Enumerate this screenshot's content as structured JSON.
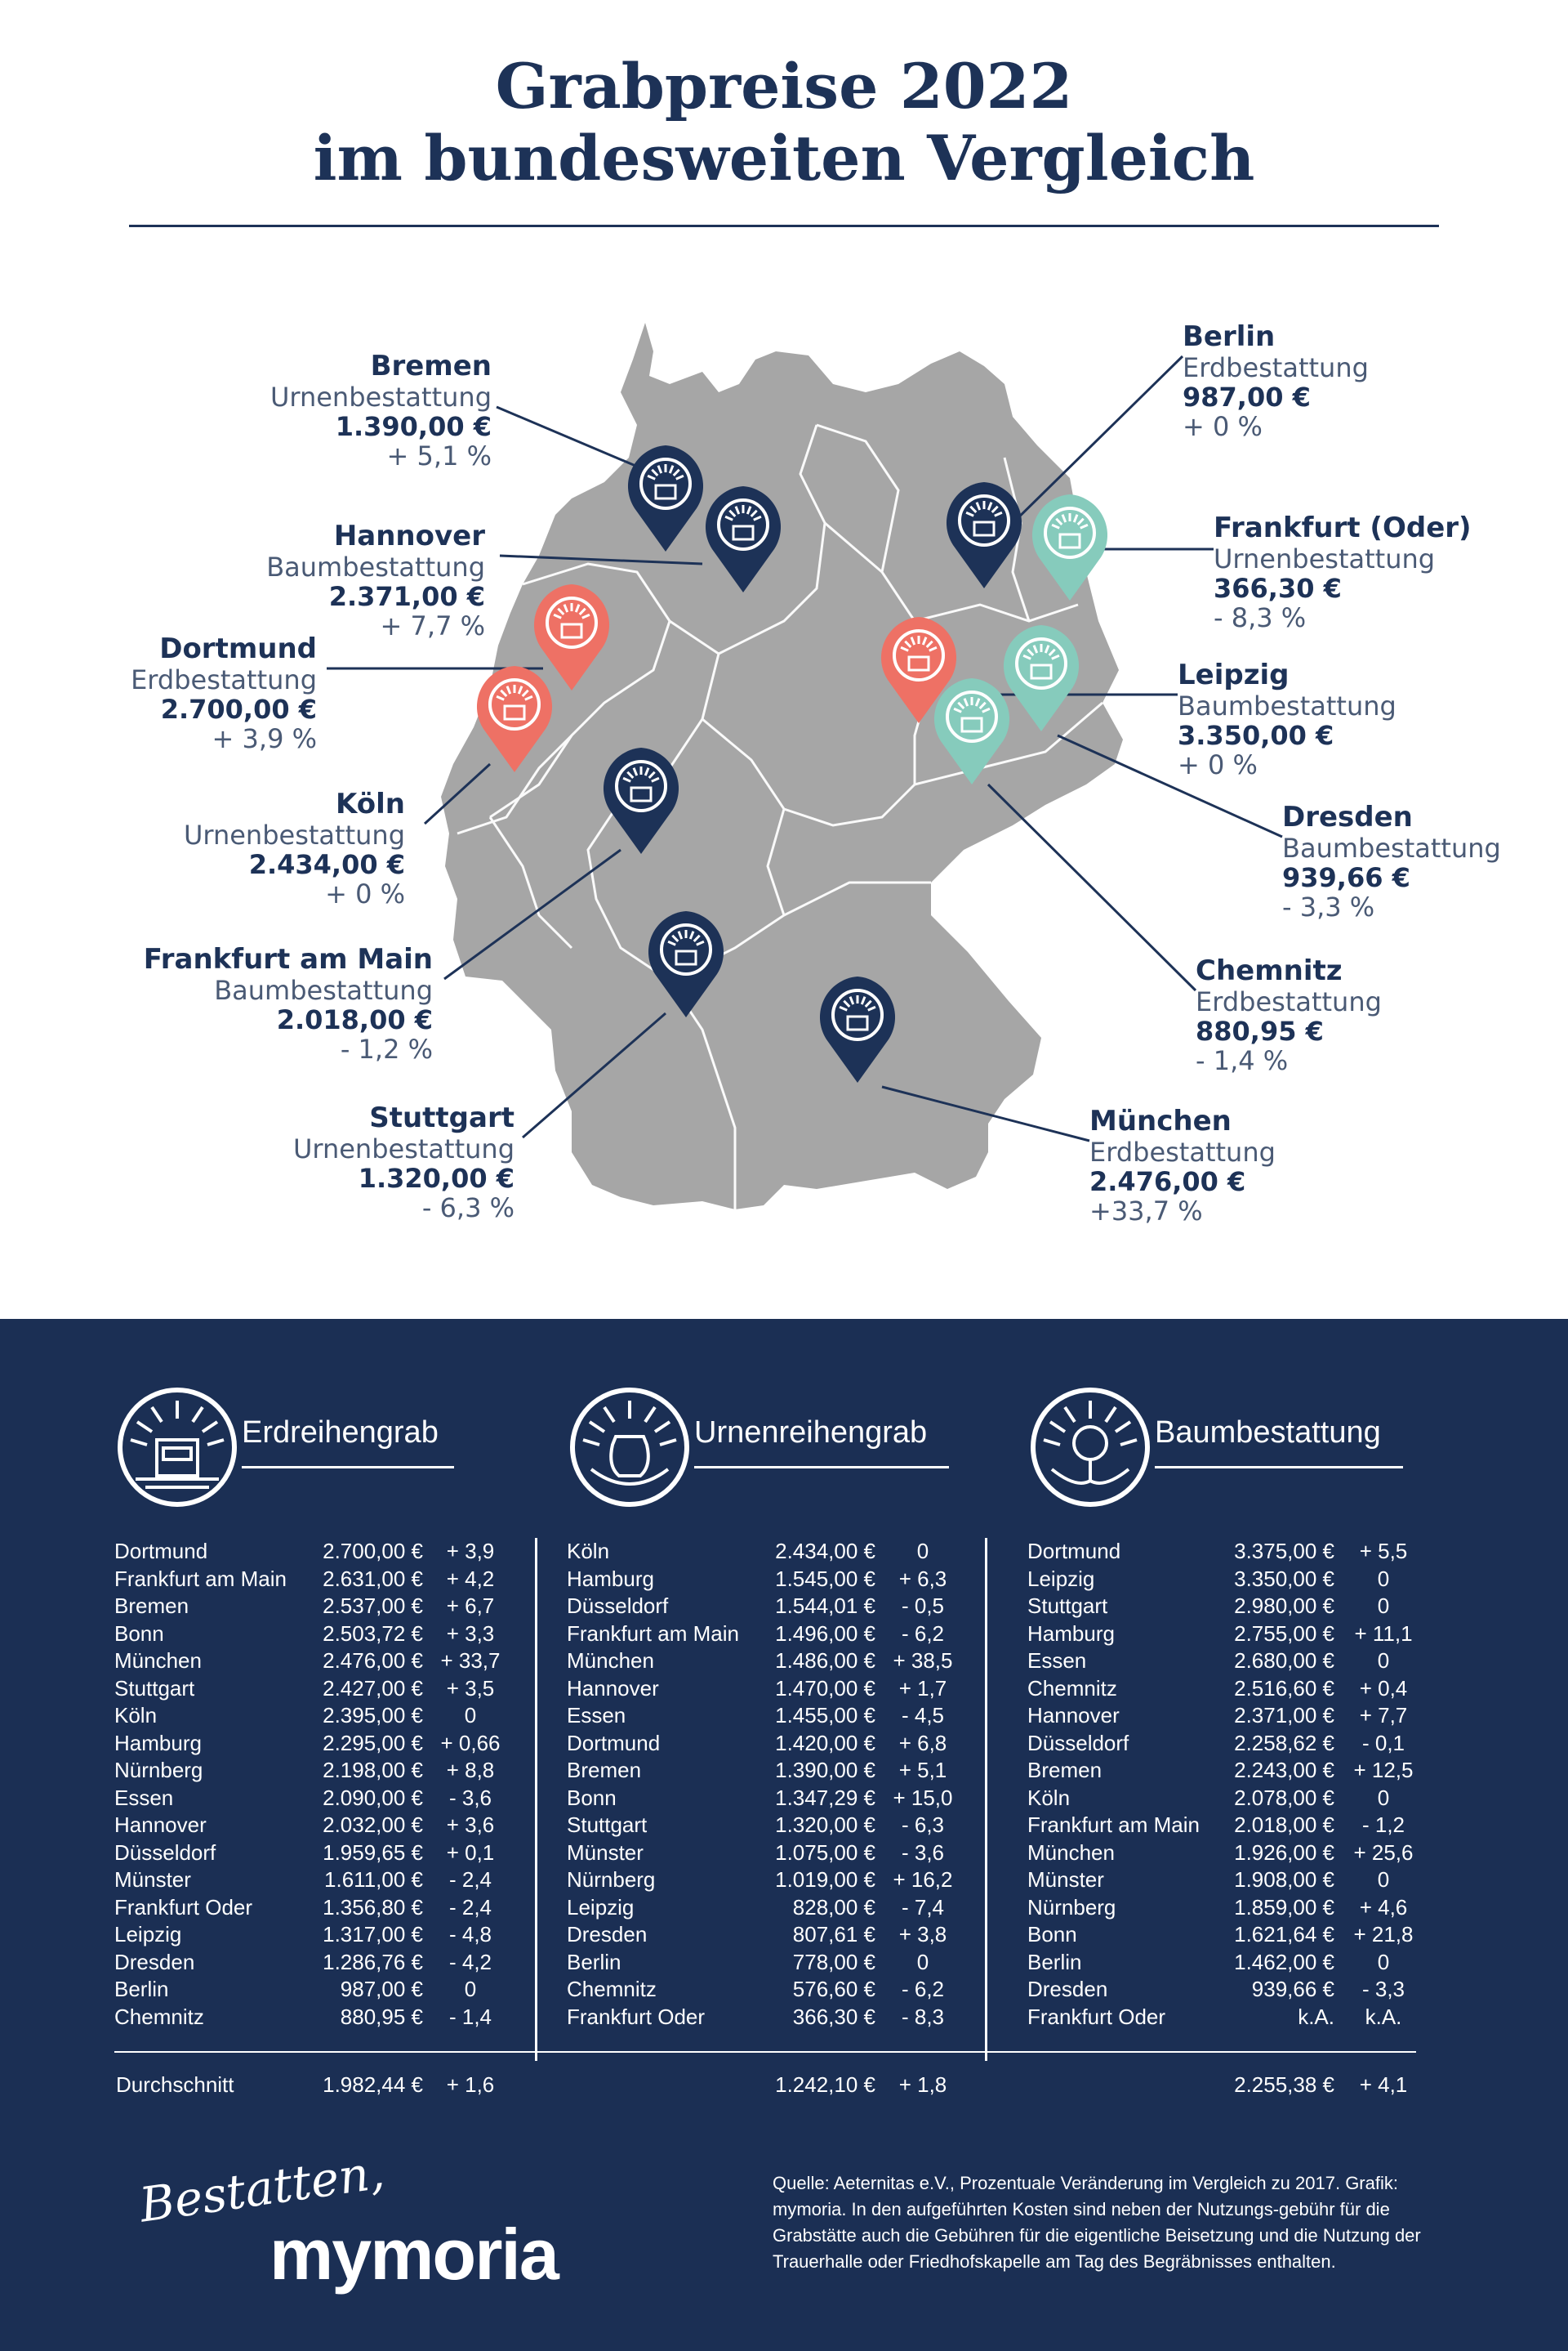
{
  "title": {
    "line1": "Grabpreise 2022",
    "line2": "im bundesweiten Vergleich"
  },
  "colors": {
    "navy": "#1d3257",
    "coral": "#ee7165",
    "mint": "#86cbbc",
    "map_gray": "#a6a6a6",
    "panel": "#1b2f54"
  },
  "map_labels": [
    {
      "city": "Bremen",
      "type": "Urnenbestattung",
      "price": "1.390,00 €",
      "change": "+ 5,1 %",
      "pin_color": "navy"
    },
    {
      "city": "Hannover",
      "type": "Baumbestattung",
      "price": "2.371,00 €",
      "change": "+ 7,7 %",
      "pin_color": "navy"
    },
    {
      "city": "Dortmund",
      "type": "Erdbestattung",
      "price": "2.700,00 €",
      "change": "+ 3,9 %",
      "pin_color": "coral"
    },
    {
      "city": "Köln",
      "type": "Urnenbestattung",
      "price": "2.434,00 €",
      "change": "+ 0 %",
      "pin_color": "coral"
    },
    {
      "city": "Frankfurt am Main",
      "type": "Baumbestattung",
      "price": "2.018,00 €",
      "change": "- 1,2 %",
      "pin_color": "navy"
    },
    {
      "city": "Stuttgart",
      "type": "Urnenbestattung",
      "price": "1.320,00 €",
      "change": "- 6,3 %",
      "pin_color": "navy"
    },
    {
      "city": "Berlin",
      "type": "Erdbestattung",
      "price": "987,00 €",
      "change": "+ 0 %",
      "pin_color": "navy"
    },
    {
      "city": "Frankfurt (Oder)",
      "type": "Urnenbestattung",
      "price": "366,30 €",
      "change": "- 8,3 %",
      "pin_color": "mint"
    },
    {
      "city": "Leipzig",
      "type": "Baumbestattung",
      "price": "3.350,00 €",
      "change": "+ 0 %",
      "pin_color": "coral"
    },
    {
      "city": "Dresden",
      "type": "Baumbestattung",
      "price": "939,66 €",
      "change": "- 3,3 %",
      "pin_color": "mint"
    },
    {
      "city": "Chemnitz",
      "type": "Erdbestattung",
      "price": "880,95 €",
      "change": "- 1,4 %",
      "pin_color": "mint"
    },
    {
      "city": "München",
      "type": "Erdbestattung",
      "price": "2.476,00 €",
      "change": "+33,7 %",
      "pin_color": "navy"
    }
  ],
  "chart_data": [
    {
      "type": "table",
      "title": "Erdreihengrab",
      "rows": [
        [
          "Dortmund",
          "2.700,00 €",
          "+ 3,9"
        ],
        [
          "Frankfurt am Main",
          "2.631,00 €",
          "+ 4,2"
        ],
        [
          "Bremen",
          "2.537,00 €",
          "+ 6,7"
        ],
        [
          "Bonn",
          "2.503,72 €",
          "+ 3,3"
        ],
        [
          "München",
          "2.476,00 €",
          "+ 33,7"
        ],
        [
          "Stuttgart",
          "2.427,00 €",
          "+ 3,5"
        ],
        [
          "Köln",
          "2.395,00 €",
          "0"
        ],
        [
          "Hamburg",
          "2.295,00 €",
          "+ 0,66"
        ],
        [
          "Nürnberg",
          "2.198,00 €",
          "+ 8,8"
        ],
        [
          "Essen",
          "2.090,00 €",
          "- 3,6"
        ],
        [
          "Hannover",
          "2.032,00 €",
          "+ 3,6"
        ],
        [
          "Düsseldorf",
          "1.959,65 €",
          "+ 0,1"
        ],
        [
          "Münster",
          "1.611,00 €",
          "- 2,4"
        ],
        [
          "Frankfurt Oder",
          "1.356,80 €",
          "- 2,4"
        ],
        [
          "Leipzig",
          "1.317,00 €",
          "- 4,8"
        ],
        [
          "Dresden",
          "1.286,76 €",
          "- 4,2"
        ],
        [
          "Berlin",
          "987,00 €",
          "0"
        ],
        [
          "Chemnitz",
          "880,95 €",
          "- 1,4"
        ]
      ],
      "average": {
        "label": "Durchschnitt",
        "price": "1.982,44 €",
        "change": "+ 1,6"
      }
    },
    {
      "type": "table",
      "title": "Urnenreihengrab",
      "rows": [
        [
          "Köln",
          "2.434,00 €",
          "0"
        ],
        [
          "Hamburg",
          "1.545,00 €",
          "+ 6,3"
        ],
        [
          "Düsseldorf",
          "1.544,01 €",
          "- 0,5"
        ],
        [
          "Frankfurt am Main",
          "1.496,00 €",
          "- 6,2"
        ],
        [
          "München",
          "1.486,00 €",
          "+ 38,5"
        ],
        [
          "Hannover",
          "1.470,00 €",
          "+ 1,7"
        ],
        [
          "Essen",
          "1.455,00 €",
          "- 4,5"
        ],
        [
          "Dortmund",
          "1.420,00 €",
          "+ 6,8"
        ],
        [
          "Bremen",
          "1.390,00 €",
          "+ 5,1"
        ],
        [
          "Bonn",
          "1.347,29 €",
          "+ 15,0"
        ],
        [
          "Stuttgart",
          "1.320,00 €",
          "- 6,3"
        ],
        [
          "Münster",
          "1.075,00 €",
          "- 3,6"
        ],
        [
          "Nürnberg",
          "1.019,00 €",
          "+ 16,2"
        ],
        [
          "Leipzig",
          "828,00 €",
          "- 7,4"
        ],
        [
          "Dresden",
          "807,61 €",
          "+ 3,8"
        ],
        [
          "Berlin",
          "778,00 €",
          "0"
        ],
        [
          "Chemnitz",
          "576,60 €",
          "- 6,2"
        ],
        [
          "Frankfurt Oder",
          "366,30 €",
          "- 8,3"
        ]
      ],
      "average": {
        "label": "",
        "price": "1.242,10 €",
        "change": "+ 1,8"
      }
    },
    {
      "type": "table",
      "title": "Baumbestattung",
      "rows": [
        [
          "Dortmund",
          "3.375,00 €",
          "+ 5,5"
        ],
        [
          "Leipzig",
          "3.350,00 €",
          "0"
        ],
        [
          "Stuttgart",
          "2.980,00 €",
          "0"
        ],
        [
          "Hamburg",
          "2.755,00 €",
          "+ 11,1"
        ],
        [
          "Essen",
          "2.680,00 €",
          "0"
        ],
        [
          "Chemnitz",
          "2.516,60 €",
          "+ 0,4"
        ],
        [
          "Hannover",
          "2.371,00 €",
          "+ 7,7"
        ],
        [
          "Düsseldorf",
          "2.258,62 €",
          "- 0,1"
        ],
        [
          "Bremen",
          "2.243,00 €",
          "+ 12,5"
        ],
        [
          "Köln",
          "2.078,00 €",
          "0"
        ],
        [
          "Frankfurt am Main",
          "2.018,00 €",
          "- 1,2"
        ],
        [
          "München",
          "1.926,00 €",
          "+ 25,6"
        ],
        [
          "Münster",
          "1.908,00 €",
          "0"
        ],
        [
          "Nürnberg",
          "1.859,00 €",
          "+ 4,6"
        ],
        [
          "Bonn",
          "1.621,64 €",
          "+ 21,8"
        ],
        [
          "Berlin",
          "1.462,00 €",
          "0"
        ],
        [
          "Dresden",
          "939,66 €",
          "- 3,3"
        ],
        [
          "Frankfurt Oder",
          "k.A.",
          "k.A."
        ]
      ],
      "average": {
        "label": "",
        "price": "2.255,38 €",
        "change": "+ 4,1"
      }
    }
  ],
  "source_text": "Quelle: Aeternitas e.V., Prozentuale Veränderung im Vergleich zu 2017. Grafik: mymoria. In den aufgeführten Kosten sind neben der Nutzungs-gebühr für die Grabstätte auch die Gebühren für die eigentliche Beisetzung und die Nutzung der Trauerhalle oder Friedhofskapelle am Tag des Begräbnisses enthalten.",
  "logo": {
    "script": "Bestatten,",
    "word": "mymoria"
  }
}
